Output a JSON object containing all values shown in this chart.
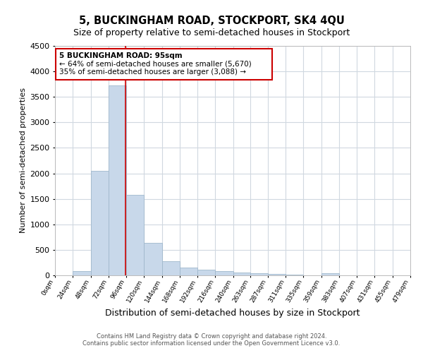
{
  "title": "5, BUCKINGHAM ROAD, STOCKPORT, SK4 4QU",
  "subtitle": "Size of property relative to semi-detached houses in Stockport",
  "xlabel": "Distribution of semi-detached houses by size in Stockport",
  "ylabel": "Number of semi-detached properties",
  "footer1": "Contains HM Land Registry data © Crown copyright and database right 2024.",
  "footer2": "Contains public sector information licensed under the Open Government Licence v3.0.",
  "annotation_line1": "5 BUCKINGHAM ROAD: 95sqm",
  "annotation_line2": "← 64% of semi-detached houses are smaller (5,670)",
  "annotation_line3": "35% of semi-detached houses are larger (3,088) →",
  "bar_color": "#c8d8ea",
  "bar_edge_color": "#a0b8cc",
  "annotation_box_color": "#cc0000",
  "property_line_color": "#cc0000",
  "property_size": 95,
  "bin_edges": [
    0,
    24,
    48,
    72,
    96,
    120,
    144,
    168,
    192,
    216,
    240,
    263,
    287,
    311,
    335,
    359,
    383,
    407,
    431,
    455,
    479
  ],
  "counts": [
    0,
    90,
    2050,
    3720,
    1580,
    640,
    280,
    155,
    110,
    80,
    50,
    40,
    30,
    20,
    5,
    38,
    0,
    0,
    0,
    0
  ],
  "ylim": [
    0,
    4500
  ],
  "yticks": [
    0,
    500,
    1000,
    1500,
    2000,
    2500,
    3000,
    3500,
    4000,
    4500
  ],
  "xlim": [
    0,
    479
  ],
  "background_color": "#ffffff",
  "grid_color": "#d0d8e0",
  "title_fontsize": 10.5,
  "subtitle_fontsize": 9,
  "ylabel_fontsize": 8,
  "xlabel_fontsize": 9,
  "tick_fontsize_y": 8,
  "tick_fontsize_x": 6.5,
  "footer_fontsize": 6,
  "annot_fontsize": 7.5
}
